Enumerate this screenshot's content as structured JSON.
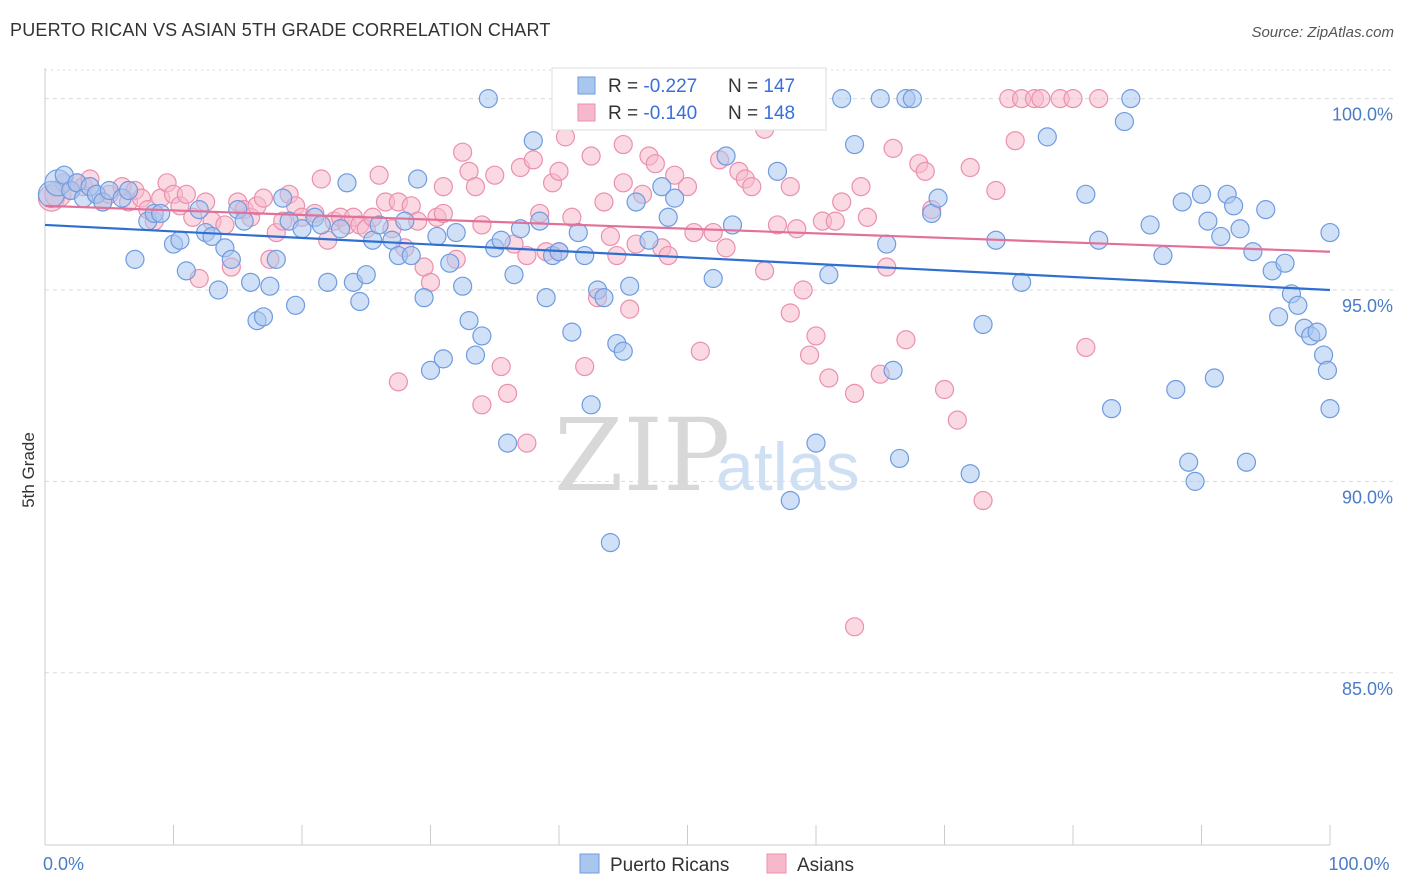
{
  "title": "PUERTO RICAN VS ASIAN 5TH GRADE CORRELATION CHART",
  "source": "Source: ZipAtlas.com",
  "watermark": {
    "zip": "ZIP",
    "atlas": "atlas"
  },
  "colors": {
    "blue_fill": "#a9c6ef",
    "blue_stroke": "#6f9be0",
    "blue_line": "#2f6fd0",
    "pink_fill": "#f6b9cc",
    "pink_stroke": "#ec8fae",
    "pink_line": "#e2719a",
    "grid": "#d9d9d9",
    "tick_text": "#4a7cc7"
  },
  "chart_data": {
    "type": "scatter",
    "xlabel": "",
    "ylabel": "5th Grade",
    "xlim": [
      0,
      100
    ],
    "ylim": [
      80.5,
      100.8
    ],
    "x_ticks": [
      0,
      10,
      20,
      30,
      40,
      50,
      60,
      70,
      80,
      90,
      100
    ],
    "x_tick_labels_shown": {
      "0": "0.0%",
      "100": "100.0%"
    },
    "y_ticks": [
      100,
      95,
      90,
      85
    ],
    "y_tick_labels": [
      "100.0%",
      "95.0%",
      "90.0%",
      "85.0%"
    ],
    "grid": "horizontal dashed",
    "legend": {
      "position": "bottom-center",
      "entries": [
        "Puerto Ricans",
        "Asians"
      ]
    },
    "stats": [
      {
        "r_label": "R = ",
        "r": "-0.227",
        "n_label": "N = ",
        "n": "147"
      },
      {
        "r_label": "R = ",
        "r": "-0.140",
        "n_label": "N = ",
        "n": "148"
      }
    ],
    "series": [
      {
        "name": "Puerto Ricans",
        "trend": {
          "x": [
            0,
            100
          ],
          "y": [
            96.7,
            95.0
          ]
        },
        "points": [
          [
            0.5,
            97.5
          ],
          [
            1,
            97.8
          ],
          [
            1.5,
            98
          ],
          [
            2,
            97.6
          ],
          [
            2.5,
            97.8
          ],
          [
            3,
            97.4
          ],
          [
            3.5,
            97.7
          ],
          [
            4,
            97.5
          ],
          [
            4.5,
            97.3
          ],
          [
            5,
            97.6
          ],
          [
            6,
            97.4
          ],
          [
            6.5,
            97.6
          ],
          [
            7,
            95.8
          ],
          [
            8,
            96.8
          ],
          [
            8.5,
            97
          ],
          [
            9,
            97
          ],
          [
            10,
            96.2
          ],
          [
            10.5,
            96.3
          ],
          [
            11,
            95.5
          ],
          [
            12,
            97.1
          ],
          [
            12.5,
            96.5
          ],
          [
            13,
            96.4
          ],
          [
            13.5,
            95
          ],
          [
            14,
            96.1
          ],
          [
            14.5,
            95.8
          ],
          [
            15,
            97.1
          ],
          [
            15.5,
            96.8
          ],
          [
            16,
            95.2
          ],
          [
            16.5,
            94.2
          ],
          [
            17,
            94.3
          ],
          [
            17.5,
            95.1
          ],
          [
            18,
            95.8
          ],
          [
            18.5,
            97.4
          ],
          [
            19,
            96.8
          ],
          [
            19.5,
            94.6
          ],
          [
            20,
            96.6
          ],
          [
            21,
            96.9
          ],
          [
            21.5,
            96.7
          ],
          [
            22,
            95.2
          ],
          [
            23,
            96.6
          ],
          [
            23.5,
            97.8
          ],
          [
            24,
            95.2
          ],
          [
            24.5,
            94.7
          ],
          [
            25,
            95.4
          ],
          [
            25.5,
            96.3
          ],
          [
            26,
            96.7
          ],
          [
            27,
            96.3
          ],
          [
            27.5,
            95.9
          ],
          [
            28,
            96.8
          ],
          [
            28.5,
            95.9
          ],
          [
            29,
            97.9
          ],
          [
            29.5,
            94.8
          ],
          [
            30,
            92.9
          ],
          [
            30.5,
            96.4
          ],
          [
            31,
            93.2
          ],
          [
            31.5,
            95.7
          ],
          [
            32,
            96.5
          ],
          [
            32.5,
            95.1
          ],
          [
            33,
            94.2
          ],
          [
            33.5,
            93.3
          ],
          [
            34,
            93.8
          ],
          [
            35,
            96.1
          ],
          [
            35.5,
            96.3
          ],
          [
            36,
            91
          ],
          [
            36.5,
            95.4
          ],
          [
            37,
            96.6
          ],
          [
            38,
            98.9
          ],
          [
            38.5,
            96.8
          ],
          [
            39,
            94.8
          ],
          [
            39.5,
            95.9
          ],
          [
            40,
            96
          ],
          [
            41,
            93.9
          ],
          [
            41.5,
            96.5
          ],
          [
            42,
            95.9
          ],
          [
            42.5,
            92
          ],
          [
            43,
            95
          ],
          [
            43.5,
            94.8
          ],
          [
            44,
            88.4
          ],
          [
            44.5,
            93.6
          ],
          [
            45,
            93.4
          ],
          [
            45.5,
            95.1
          ],
          [
            47,
            96.3
          ],
          [
            48,
            97.7
          ],
          [
            48.5,
            96.9
          ],
          [
            49,
            97.4
          ],
          [
            50,
            100
          ],
          [
            52,
            95.3
          ],
          [
            53,
            98.5
          ],
          [
            55,
            100
          ],
          [
            56,
            100
          ],
          [
            58,
            89.5
          ],
          [
            60,
            91
          ],
          [
            61,
            95.4
          ],
          [
            62,
            100
          ],
          [
            65,
            100
          ],
          [
            66,
            92.9
          ],
          [
            66.5,
            90.6
          ],
          [
            67,
            100
          ],
          [
            67.5,
            100
          ],
          [
            69,
            97
          ],
          [
            69.5,
            97.4
          ],
          [
            72,
            90.2
          ],
          [
            73,
            94.1
          ],
          [
            74,
            96.3
          ],
          [
            76,
            95.2
          ],
          [
            78,
            99
          ],
          [
            81,
            97.5
          ],
          [
            82,
            96.3
          ],
          [
            83,
            91.9
          ],
          [
            84,
            99.4
          ],
          [
            84.5,
            100
          ],
          [
            86,
            96.7
          ],
          [
            87,
            95.9
          ],
          [
            88,
            92.4
          ],
          [
            88.5,
            97.3
          ],
          [
            89,
            90.5
          ],
          [
            89.5,
            90
          ],
          [
            90,
            97.5
          ],
          [
            90.5,
            96.8
          ],
          [
            91,
            92.7
          ],
          [
            91.5,
            96.4
          ],
          [
            92,
            97.5
          ],
          [
            92.5,
            97.2
          ],
          [
            93,
            96.6
          ],
          [
            93.5,
            90.5
          ],
          [
            94,
            96
          ],
          [
            95,
            97.1
          ],
          [
            95.5,
            95.5
          ],
          [
            96,
            94.3
          ],
          [
            96.5,
            95.7
          ],
          [
            97,
            94.9
          ],
          [
            97.5,
            94.6
          ],
          [
            98,
            94
          ],
          [
            98.5,
            93.8
          ],
          [
            99,
            93.9
          ],
          [
            99.5,
            93.3
          ],
          [
            99.8,
            92.9
          ],
          [
            100,
            91.9
          ],
          [
            100,
            96.5
          ],
          [
            34.5,
            100
          ],
          [
            46,
            97.3
          ],
          [
            53.5,
            96.7
          ],
          [
            65.5,
            96.2
          ],
          [
            57,
            98.1
          ],
          [
            63,
            98.8
          ]
        ]
      },
      {
        "name": "Asians",
        "trend": {
          "x": [
            0,
            100
          ],
          "y": [
            97.2,
            96.0
          ]
        },
        "points": [
          [
            0.5,
            97.4
          ],
          [
            1,
            97.5
          ],
          [
            1.5,
            97.8
          ],
          [
            2,
            97.6
          ],
          [
            2.5,
            97.8
          ],
          [
            3,
            97.7
          ],
          [
            3.5,
            97.9
          ],
          [
            4,
            97.5
          ],
          [
            4.5,
            97.3
          ],
          [
            5,
            97.5
          ],
          [
            6,
            97.7
          ],
          [
            6.5,
            97.3
          ],
          [
            7,
            97.6
          ],
          [
            7.5,
            97.4
          ],
          [
            8,
            97.1
          ],
          [
            8.5,
            96.8
          ],
          [
            9,
            97.4
          ],
          [
            9.5,
            97.8
          ],
          [
            10,
            97.5
          ],
          [
            10.5,
            97.2
          ],
          [
            11,
            97.5
          ],
          [
            11.5,
            96.9
          ],
          [
            12,
            95.3
          ],
          [
            12.5,
            97.3
          ],
          [
            13,
            96.8
          ],
          [
            14,
            96.7
          ],
          [
            14.5,
            95.6
          ],
          [
            15,
            97.3
          ],
          [
            15.5,
            97.1
          ],
          [
            16,
            96.9
          ],
          [
            16.5,
            97.2
          ],
          [
            17,
            97.4
          ],
          [
            17.5,
            95.8
          ],
          [
            18,
            96.5
          ],
          [
            18.5,
            96.8
          ],
          [
            19,
            97.5
          ],
          [
            19.5,
            97.2
          ],
          [
            20,
            96.9
          ],
          [
            21,
            97
          ],
          [
            21.5,
            97.9
          ],
          [
            22,
            96.3
          ],
          [
            22.5,
            96.8
          ],
          [
            23,
            96.9
          ],
          [
            23.5,
            96.7
          ],
          [
            24,
            96.9
          ],
          [
            24.5,
            96.7
          ],
          [
            25,
            96.6
          ],
          [
            25.5,
            96.9
          ],
          [
            26,
            98
          ],
          [
            26.5,
            97.3
          ],
          [
            27,
            96.6
          ],
          [
            27.5,
            97.3
          ],
          [
            28,
            96.1
          ],
          [
            28.5,
            97.2
          ],
          [
            29,
            96.8
          ],
          [
            29.5,
            95.6
          ],
          [
            30,
            95.2
          ],
          [
            30.5,
            96.9
          ],
          [
            31,
            97
          ],
          [
            32,
            95.8
          ],
          [
            32.5,
            98.6
          ],
          [
            33,
            98.1
          ],
          [
            33.5,
            97.7
          ],
          [
            34,
            96.7
          ],
          [
            35,
            98
          ],
          [
            35.5,
            93
          ],
          [
            36,
            92.3
          ],
          [
            36.5,
            96.2
          ],
          [
            37,
            98.2
          ],
          [
            37.5,
            95.9
          ],
          [
            38,
            98.4
          ],
          [
            38.5,
            97
          ],
          [
            39,
            96
          ],
          [
            39.5,
            97.8
          ],
          [
            40,
            98.1
          ],
          [
            40.5,
            99
          ],
          [
            41,
            96.9
          ],
          [
            42,
            93
          ],
          [
            42.5,
            98.5
          ],
          [
            43,
            94.8
          ],
          [
            43.5,
            97.3
          ],
          [
            44,
            96.4
          ],
          [
            44.5,
            95.9
          ],
          [
            45,
            97.8
          ],
          [
            45.5,
            94.5
          ],
          [
            46,
            96.2
          ],
          [
            46.5,
            97.5
          ],
          [
            47,
            98.5
          ],
          [
            47.5,
            98.3
          ],
          [
            48,
            96.1
          ],
          [
            48.5,
            95.9
          ],
          [
            50,
            97.7
          ],
          [
            50.5,
            96.5
          ],
          [
            51,
            93.4
          ],
          [
            52,
            96.5
          ],
          [
            53,
            96.1
          ],
          [
            54,
            98.1
          ],
          [
            54.5,
            97.9
          ],
          [
            55,
            97.7
          ],
          [
            56,
            95.5
          ],
          [
            57,
            96.7
          ],
          [
            58,
            97.7
          ],
          [
            58.5,
            96.6
          ],
          [
            59,
            95
          ],
          [
            59.5,
            93.3
          ],
          [
            60,
            93.8
          ],
          [
            60.5,
            96.8
          ],
          [
            61,
            92.7
          ],
          [
            61.5,
            96.8
          ],
          [
            62,
            97.3
          ],
          [
            63,
            92.3
          ],
          [
            63.5,
            97.7
          ],
          [
            64,
            96.9
          ],
          [
            65,
            92.8
          ],
          [
            65.5,
            95.6
          ],
          [
            66,
            98.7
          ],
          [
            67,
            93.7
          ],
          [
            68,
            98.3
          ],
          [
            68.5,
            98.1
          ],
          [
            69,
            97.1
          ],
          [
            70,
            92.4
          ],
          [
            71,
            91.6
          ],
          [
            72,
            98.2
          ],
          [
            73,
            89.5
          ],
          [
            74,
            97.6
          ],
          [
            75,
            100
          ],
          [
            75.5,
            98.9
          ],
          [
            76,
            100
          ],
          [
            77,
            100
          ],
          [
            77.5,
            100
          ],
          [
            79,
            100
          ],
          [
            80,
            100
          ],
          [
            81,
            93.5
          ],
          [
            82,
            100
          ],
          [
            37.5,
            91
          ],
          [
            63,
            86.2
          ],
          [
            45,
            98.8
          ],
          [
            52.5,
            98.4
          ],
          [
            56,
            99.2
          ],
          [
            31,
            97.7
          ],
          [
            40,
            96
          ],
          [
            34,
            92
          ],
          [
            58,
            94.4
          ],
          [
            27.5,
            92.6
          ],
          [
            49,
            98
          ]
        ]
      }
    ]
  }
}
